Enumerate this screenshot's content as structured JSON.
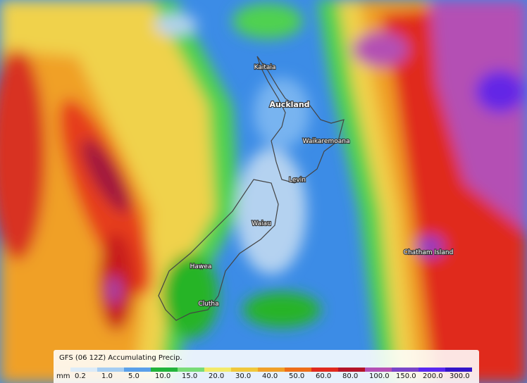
{
  "places": [
    {
      "name": "Kaitaia"
    },
    {
      "name": "Auckland"
    },
    {
      "name": "Waikaremoana"
    },
    {
      "name": "Levin"
    },
    {
      "name": "Waiau"
    },
    {
      "name": "Hawea"
    },
    {
      "name": "Clutha"
    },
    {
      "name": "Chatham Island"
    }
  ],
  "legend": {
    "title": "GFS (06 12Z) Accumulating Precip.",
    "unit": "mm",
    "items": [
      {
        "label": "0.2",
        "color": "#dcebf8"
      },
      {
        "label": "1.0",
        "color": "#a6cdf2"
      },
      {
        "label": "5.0",
        "color": "#5aa0ea"
      },
      {
        "label": "10.0",
        "color": "#22b43a"
      },
      {
        "label": "15.0",
        "color": "#78dc78"
      },
      {
        "label": "20.0",
        "color": "#f2ea6a"
      },
      {
        "label": "30.0",
        "color": "#f0c83c"
      },
      {
        "label": "40.0",
        "color": "#f0a028"
      },
      {
        "label": "50.0",
        "color": "#ee6e18"
      },
      {
        "label": "60.0",
        "color": "#e02a1e"
      },
      {
        "label": "80.0",
        "color": "#b41428"
      },
      {
        "label": "100.0",
        "color": "#b450b4"
      },
      {
        "label": "150.0",
        "color": "#7a46c8"
      },
      {
        "label": "200.0",
        "color": "#5a28f0"
      },
      {
        "label": "300.0",
        "color": "#3414c8"
      }
    ]
  }
}
